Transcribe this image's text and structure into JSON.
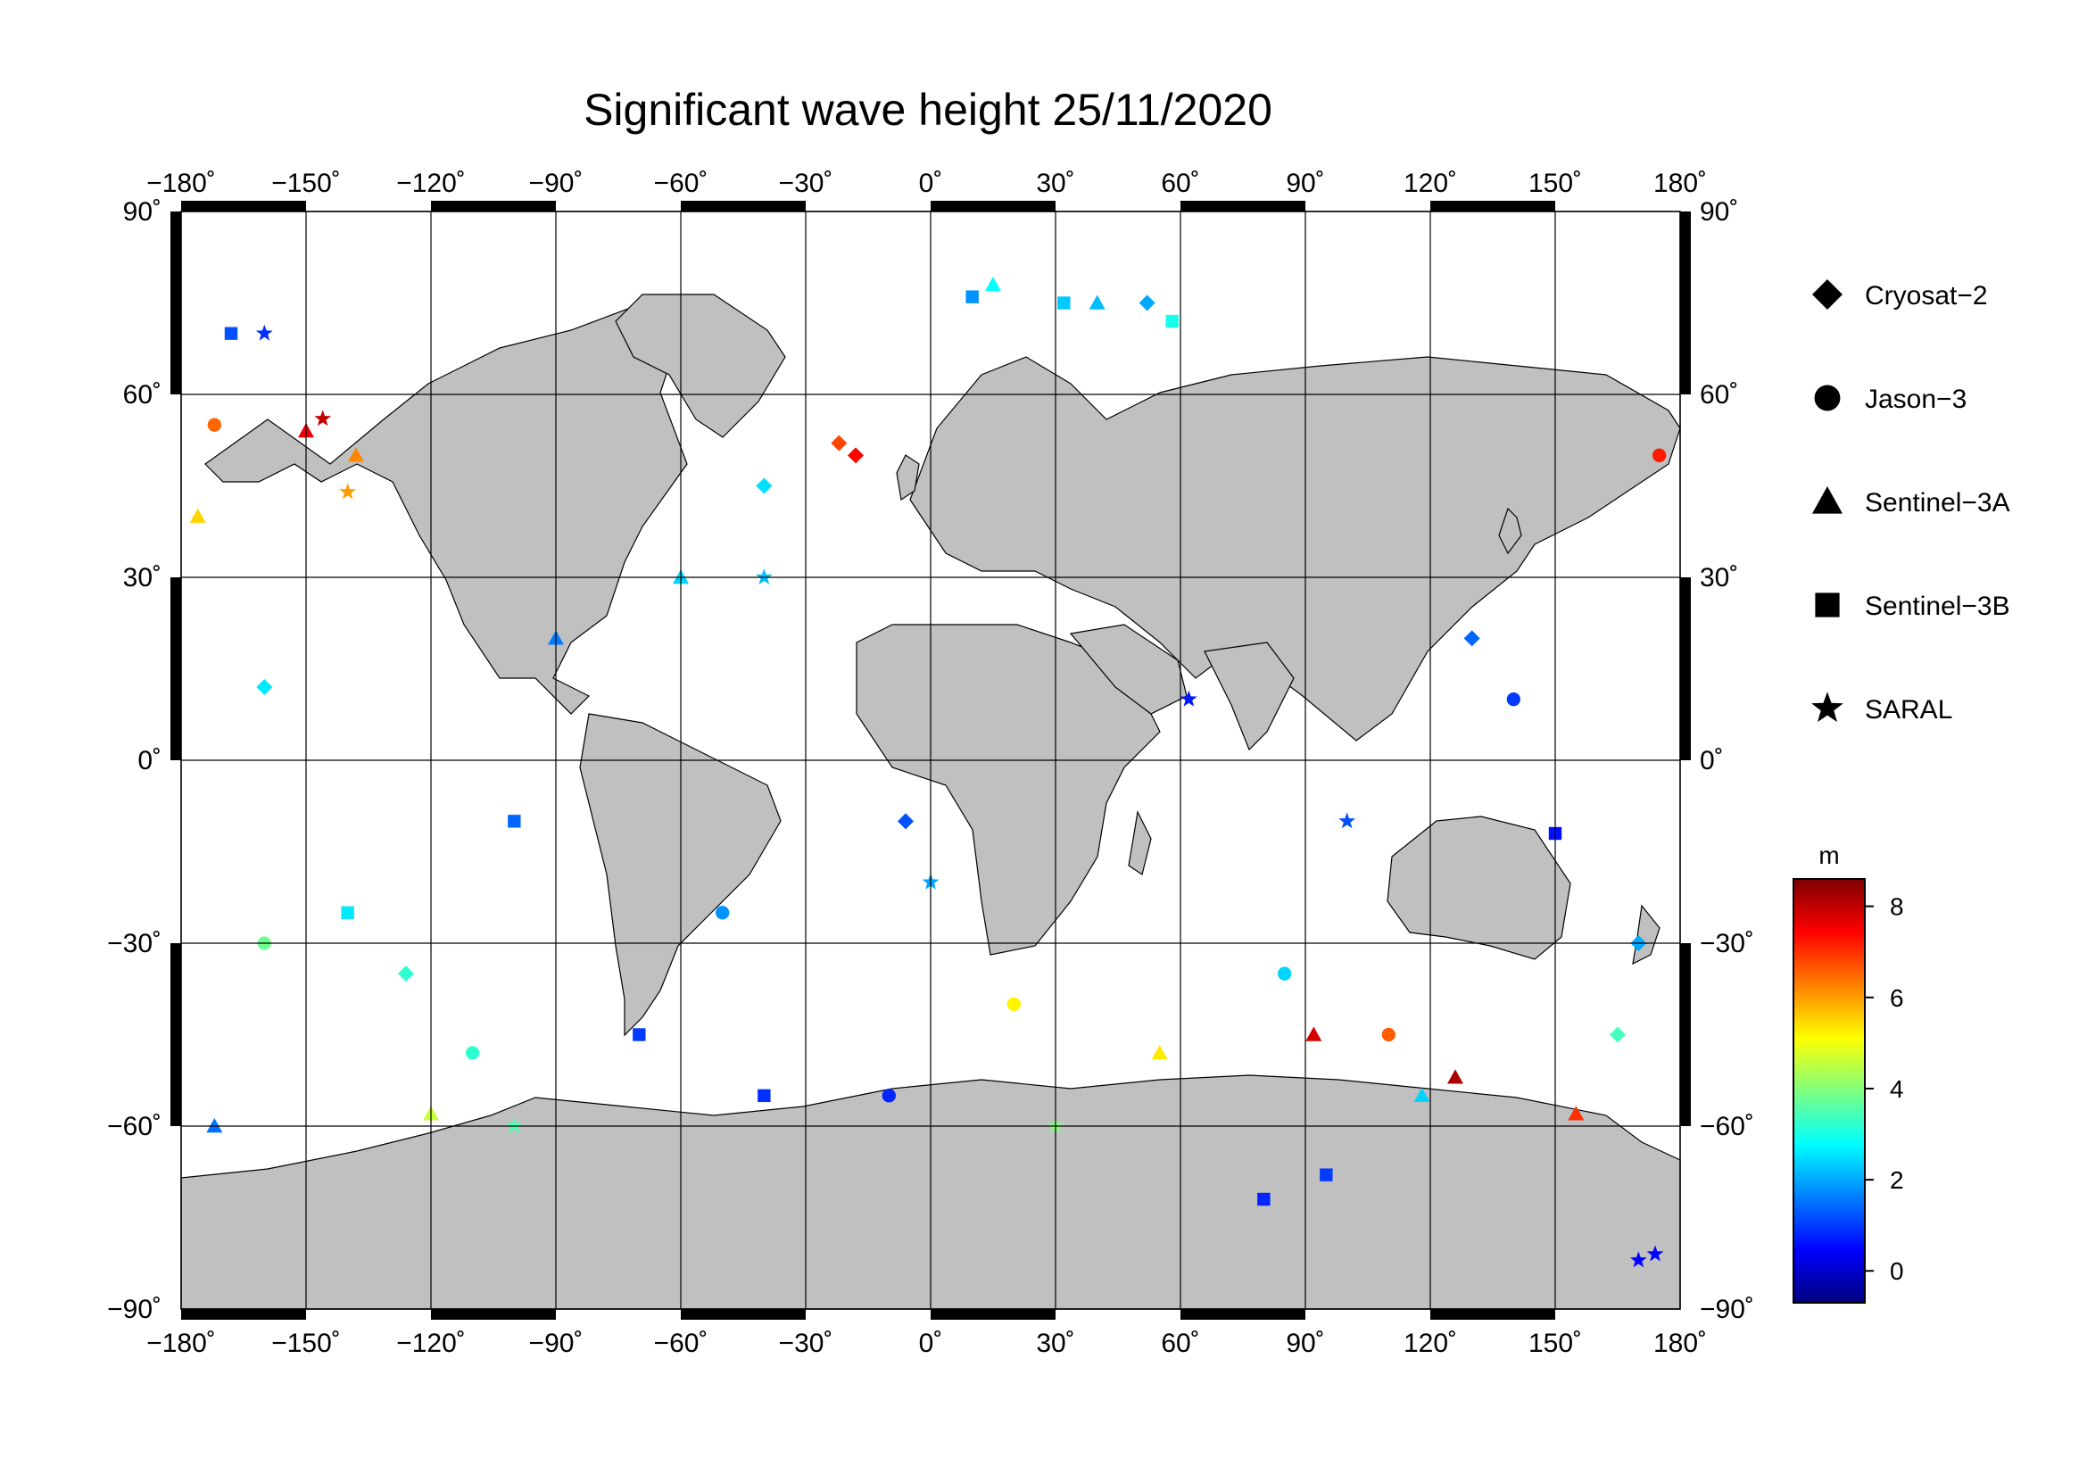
{
  "title": "Significant wave height 25/11/2020",
  "map": {
    "projection": "equirectangular",
    "lon_range": [
      -180,
      180
    ],
    "lat_range": [
      -90,
      90
    ],
    "land_color": "#c0c0c0",
    "ocean_color": "#ffffff",
    "grid": true,
    "lon_ticks": [
      {
        "value": -180,
        "label": "−180˚"
      },
      {
        "value": -150,
        "label": "−150˚"
      },
      {
        "value": -120,
        "label": "−120˚"
      },
      {
        "value": -90,
        "label": "−90˚"
      },
      {
        "value": -60,
        "label": "−60˚"
      },
      {
        "value": -30,
        "label": "−30˚"
      },
      {
        "value": 0,
        "label": "0˚"
      },
      {
        "value": 30,
        "label": "30˚"
      },
      {
        "value": 60,
        "label": "60˚"
      },
      {
        "value": 90,
        "label": "90˚"
      },
      {
        "value": 120,
        "label": "120˚"
      },
      {
        "value": 150,
        "label": "150˚"
      },
      {
        "value": 180,
        "label": "180˚"
      }
    ],
    "lat_ticks": [
      {
        "value": 90,
        "label": "90˚"
      },
      {
        "value": 60,
        "label": "60˚"
      },
      {
        "value": 30,
        "label": "30˚"
      },
      {
        "value": 0,
        "label": "0˚"
      },
      {
        "value": -30,
        "label": "−30˚"
      },
      {
        "value": -60,
        "label": "−60˚"
      },
      {
        "value": -90,
        "label": "−90˚"
      }
    ]
  },
  "legend": {
    "items": [
      {
        "label": "Cryosat−2",
        "marker": "diamond-icon"
      },
      {
        "label": "Jason−3",
        "marker": "circle-icon"
      },
      {
        "label": "Sentinel−3A",
        "marker": "triangle-icon"
      },
      {
        "label": "Sentinel−3B",
        "marker": "square-icon"
      },
      {
        "label": "SARAL",
        "marker": "star-icon"
      }
    ]
  },
  "colorbar": {
    "unit": "m",
    "range": [
      -0.7,
      8.6
    ],
    "ticks": [
      {
        "value": 8,
        "label": "8"
      },
      {
        "value": 6,
        "label": "6"
      },
      {
        "value": 4,
        "label": "4"
      },
      {
        "value": 2,
        "label": "2"
      },
      {
        "value": 0,
        "label": "0"
      }
    ],
    "colormap": [
      "#00007f",
      "#0000ff",
      "#007fff",
      "#00ffff",
      "#7fff7f",
      "#ffff00",
      "#ff7f00",
      "#ff0000",
      "#7f0000"
    ]
  },
  "chart_data": {
    "type": "scatter",
    "title": "Significant wave height 25/11/2020",
    "x": "longitude",
    "y": "latitude",
    "color": "significant wave height (m)",
    "xlim": [
      -180,
      180
    ],
    "ylim": [
      -90,
      90
    ],
    "series": [
      {
        "name": "Cryosat−2",
        "marker": "diamond",
        "points": [
          [
            -160,
            12,
            2.6
          ],
          [
            -126,
            -35,
            3.2
          ],
          [
            -40,
            45,
            2.5
          ],
          [
            -22,
            52,
            6.8
          ],
          [
            -18,
            50,
            7.4
          ],
          [
            -6,
            -10,
            1.2
          ],
          [
            52,
            75,
            2.0
          ],
          [
            130,
            20,
            1.4
          ],
          [
            165,
            -45,
            3.4
          ],
          [
            170,
            -30,
            2.0
          ]
        ]
      },
      {
        "name": "Jason−3",
        "marker": "circle",
        "points": [
          [
            -172,
            55,
            6.5
          ],
          [
            -160,
            -30,
            3.8
          ],
          [
            -110,
            -48,
            3.2
          ],
          [
            -50,
            -25,
            1.8
          ],
          [
            -10,
            -55,
            0.8
          ],
          [
            20,
            -40,
            5.2
          ],
          [
            85,
            -35,
            2.4
          ],
          [
            110,
            -45,
            6.6
          ],
          [
            140,
            10,
            1.0
          ],
          [
            175,
            50,
            7.2
          ]
        ]
      },
      {
        "name": "Sentinel−3A",
        "marker": "triangle",
        "points": [
          [
            -176,
            40,
            5.5
          ],
          [
            -172,
            -60,
            1.5
          ],
          [
            -150,
            54,
            7.6
          ],
          [
            -138,
            50,
            6.2
          ],
          [
            -120,
            -58,
            4.6
          ],
          [
            -90,
            20,
            1.6
          ],
          [
            -60,
            30,
            2.4
          ],
          [
            15,
            78,
            2.8
          ],
          [
            40,
            75,
            2.2
          ],
          [
            55,
            -48,
            5.3
          ],
          [
            92,
            -45,
            7.8
          ],
          [
            118,
            -55,
            2.4
          ],
          [
            126,
            -52,
            8.2
          ],
          [
            155,
            -58,
            7.0
          ]
        ]
      },
      {
        "name": "Sentinel−3B",
        "marker": "square",
        "points": [
          [
            -168,
            70,
            1.2
          ],
          [
            -140,
            -25,
            2.6
          ],
          [
            -100,
            -10,
            1.4
          ],
          [
            -70,
            -45,
            1.0
          ],
          [
            -40,
            -55,
            0.9
          ],
          [
            10,
            76,
            1.8
          ],
          [
            32,
            75,
            2.3
          ],
          [
            58,
            72,
            3.0
          ],
          [
            80,
            -72,
            0.8
          ],
          [
            95,
            -68,
            1.0
          ],
          [
            150,
            -12,
            0.6
          ]
        ]
      },
      {
        "name": "SARAL",
        "marker": "star",
        "points": [
          [
            -160,
            70,
            0.9
          ],
          [
            -146,
            56,
            8.0
          ],
          [
            -140,
            44,
            6.0
          ],
          [
            -100,
            -60,
            3.5
          ],
          [
            -40,
            30,
            2.2
          ],
          [
            0,
            -20,
            2.0
          ],
          [
            30,
            -60,
            4.0
          ],
          [
            62,
            10,
            0.7
          ],
          [
            100,
            -10,
            1.2
          ],
          [
            170,
            -82,
            0.5
          ],
          [
            174,
            -81,
            0.5
          ]
        ]
      }
    ]
  }
}
